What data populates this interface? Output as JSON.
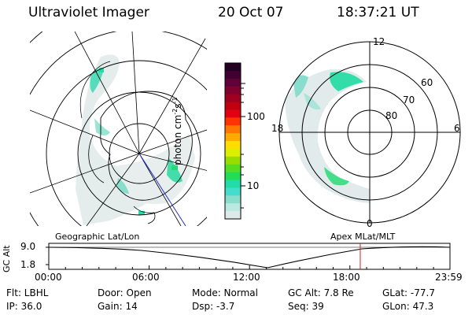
{
  "header": {
    "instrument": "Ultraviolet Imager",
    "date": "20 Oct 07",
    "time": "18:37:21 UT"
  },
  "colorbar": {
    "label": "photon cm",
    "exp1": "-2",
    "mid": "s",
    "exp2": "-1",
    "ticks": [
      "100",
      "10"
    ],
    "colors": [
      "#220022",
      "#400030",
      "#600038",
      "#800030",
      "#a00020",
      "#c00010",
      "#e00010",
      "#ff3300",
      "#ff7700",
      "#ffaa00",
      "#ffdd00",
      "#ddee00",
      "#99dd00",
      "#55dd22",
      "#22dd55",
      "#22ddaa",
      "#44ddcc",
      "#88ddcc",
      "#bbe8e0",
      "#dde8e8"
    ]
  },
  "polar": {
    "mlt_labels": {
      "top": "12",
      "left": "18",
      "right": "6",
      "bottom": "0"
    },
    "lat_labels": [
      "60",
      "70",
      "80"
    ]
  },
  "timeline": {
    "axis_label": "GC Alt",
    "y_ticks": [
      "9.0",
      "1.8"
    ],
    "left_caption": "Geographic Lat/Lon",
    "right_caption": "Apex  MLat/MLT",
    "x_ticks": [
      "00:00",
      "06:00",
      "12:00",
      "18:00",
      "23:59"
    ],
    "marker_hour": 18.62,
    "span_hours": 23.983
  },
  "info": {
    "flt": "Flt: LBHL",
    "ip": "IP: 36.0",
    "door": "Door: Open",
    "gain": "Gain: 14",
    "mode": "Mode: Normal",
    "dsp": "Dsp:   -3.7",
    "gcalt": "GC Alt: 7.8 Re",
    "seq": "Seq: 39",
    "glat": "GLat: -77.7",
    "glon": "GLon:  47.3"
  }
}
